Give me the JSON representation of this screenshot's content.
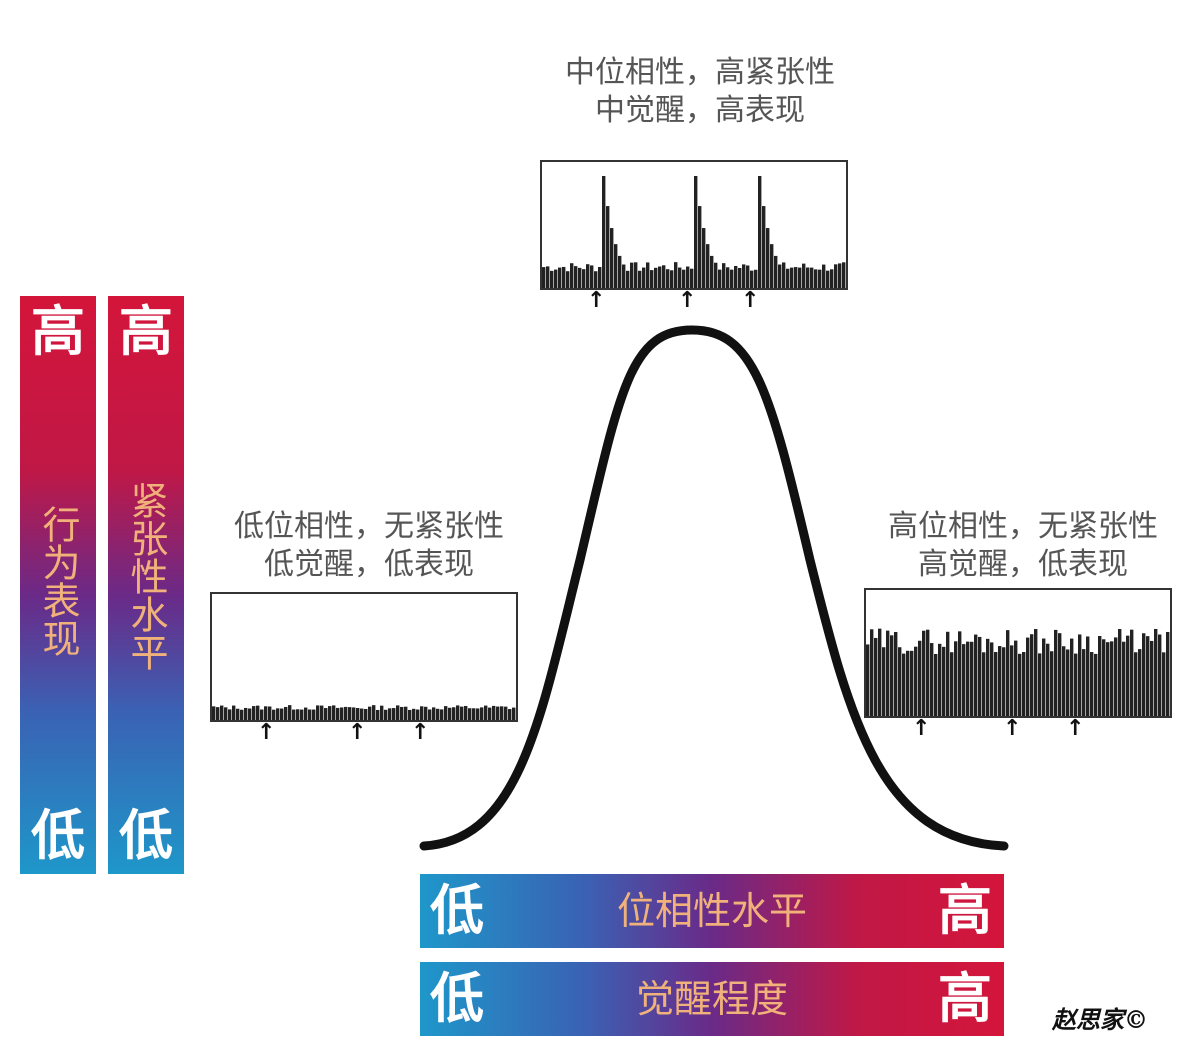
{
  "vertical_bars": {
    "performance": {
      "high": "高",
      "label": "行为表现",
      "low": "低"
    },
    "tonic": {
      "high": "高",
      "label": "紧张性水平",
      "low": "低"
    }
  },
  "horizontal_bars": {
    "phasic": {
      "low": "低",
      "label": "位相性水平",
      "high": "高"
    },
    "arousal": {
      "low": "低",
      "label": "觉醒程度",
      "high": "高"
    }
  },
  "captions": {
    "top": {
      "line1": "中位相性，高紧张性",
      "line2": "中觉醒，高表现"
    },
    "left": {
      "line1": "低位相性，无紧张性",
      "line2": "低觉醒，低表现"
    },
    "right": {
      "line1": "高位相性，无紧张性",
      "line2": "高觉醒，低表现"
    }
  },
  "copyright": "赵思家©",
  "colors": {
    "high_red": "#d4153a",
    "mid_purple": "#6a2a88",
    "low_blue": "#1e97c9",
    "label_orange": "#f0b27a",
    "curve_black": "#111111"
  }
}
